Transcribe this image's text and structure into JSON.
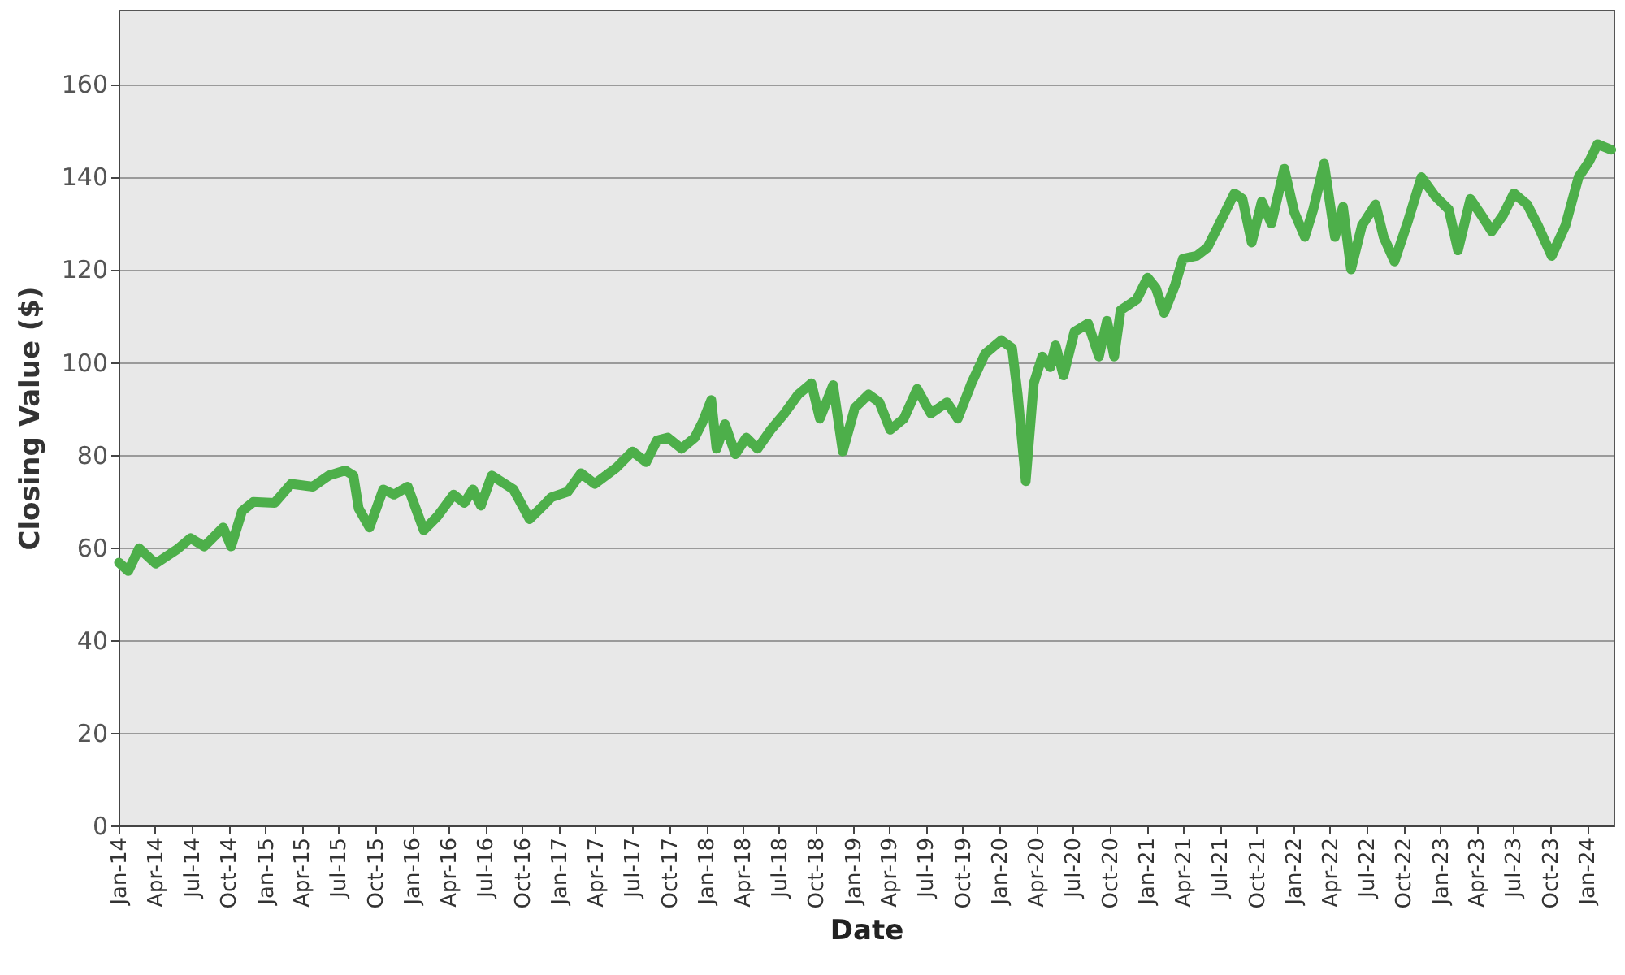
{
  "chart_data": {
    "type": "line",
    "xlabel": "Date",
    "ylabel": "Closing Value ($)",
    "x": [
      "2014-01-02",
      "2014-01-25",
      "2014-02-21",
      "2014-04-03",
      "2014-05-27",
      "2014-06-29",
      "2014-08-02",
      "2014-09-18",
      "2014-10-08",
      "2014-11-04",
      "2014-12-02",
      "2015-01-24",
      "2015-03-06",
      "2015-04-29",
      "2015-06-08",
      "2015-07-19",
      "2015-08-08",
      "2015-08-21",
      "2015-09-17",
      "2015-10-21",
      "2015-11-17",
      "2015-12-21",
      "2016-01-30",
      "2016-03-04",
      "2016-04-13",
      "2016-05-10",
      "2016-05-31",
      "2016-06-20",
      "2016-07-17",
      "2016-09-09",
      "2016-10-19",
      "2016-11-29",
      "2016-12-12",
      "2017-01-22",
      "2017-02-24",
      "2017-03-30",
      "2017-05-23",
      "2017-07-02",
      "2017-08-05",
      "2017-09-01",
      "2017-09-28",
      "2017-11-01",
      "2017-12-04",
      "2017-12-24",
      "2018-01-14",
      "2018-01-27",
      "2018-02-17",
      "2018-03-15",
      "2018-04-11",
      "2018-05-09",
      "2018-06-11",
      "2018-07-15",
      "2018-08-18",
      "2018-09-20",
      "2018-10-11",
      "2018-11-13",
      "2018-12-07",
      "2019-01-06",
      "2019-02-09",
      "2019-03-08",
      "2019-04-04",
      "2019-05-08",
      "2019-06-10",
      "2019-07-14",
      "2019-08-23",
      "2019-09-19",
      "2019-10-23",
      "2019-11-26",
      "2020-01-05",
      "2020-02-01",
      "2020-02-15",
      "2020-03-06",
      "2020-03-26",
      "2020-04-16",
      "2020-05-06",
      "2020-05-19",
      "2020-06-08",
      "2020-07-05",
      "2020-08-08",
      "2020-09-04",
      "2020-09-24",
      "2020-10-12",
      "2020-10-28",
      "2020-12-07",
      "2021-01-03",
      "2021-01-24",
      "2021-02-13",
      "2021-03-12",
      "2021-04-01",
      "2021-05-05",
      "2021-06-01",
      "2021-06-28",
      "2021-08-07",
      "2021-08-27",
      "2021-09-19",
      "2021-10-14",
      "2021-11-07",
      "2021-12-09",
      "2022-01-03",
      "2022-01-29",
      "2022-02-19",
      "2022-03-18",
      "2022-04-14",
      "2022-05-04",
      "2022-05-24",
      "2022-06-20",
      "2022-07-24",
      "2022-08-13",
      "2022-09-09",
      "2022-10-13",
      "2022-11-15",
      "2022-12-19",
      "2023-01-22",
      "2023-02-14",
      "2023-03-17",
      "2023-04-13",
      "2023-05-09",
      "2023-06-06",
      "2023-07-03",
      "2023-08-05",
      "2023-09-01",
      "2023-10-05",
      "2023-11-08",
      "2023-12-11",
      "2024-01-07",
      "2024-01-27",
      "2024-03-01"
    ],
    "series": [
      {
        "color": "#4daf4a",
        "values": [
          56.7,
          54.9,
          59.8,
          56.5,
          59.6,
          62.0,
          60.2,
          64.3,
          60.2,
          67.8,
          69.8,
          69.6,
          73.7,
          73.1,
          75.5,
          76.6,
          75.5,
          68.4,
          64.3,
          72.5,
          71.4,
          73.1,
          63.7,
          66.7,
          71.4,
          69.6,
          72.5,
          69.0,
          75.5,
          72.5,
          66.1,
          69.6,
          70.8,
          72.0,
          76.0,
          73.7,
          77.2,
          80.7,
          78.4,
          83.1,
          83.7,
          81.3,
          83.7,
          87.2,
          91.8,
          81.3,
          86.6,
          80.1,
          83.7,
          81.3,
          85.4,
          88.9,
          93.0,
          95.4,
          87.8,
          95.0,
          80.7,
          90.1,
          93.0,
          91.3,
          85.4,
          87.8,
          94.2,
          88.9,
          91.3,
          87.8,
          95.4,
          101.8,
          104.7,
          103.0,
          93.0,
          74.3,
          95.4,
          101.2,
          98.9,
          103.6,
          97.1,
          106.5,
          108.3,
          101.2,
          108.9,
          101.2,
          111.2,
          113.5,
          118.2,
          115.9,
          110.6,
          116.5,
          122.3,
          122.9,
          124.7,
          129.4,
          136.4,
          135.2,
          125.8,
          134.6,
          129.9,
          141.7,
          132.3,
          127.0,
          132.9,
          142.8,
          127.0,
          133.5,
          120.0,
          129.4,
          134.0,
          127.0,
          121.7,
          130.5,
          139.9,
          135.8,
          132.9,
          124.1,
          135.2,
          131.7,
          128.2,
          131.7,
          136.4,
          134.0,
          129.4,
          122.9,
          129.4,
          139.9,
          143.4,
          147.0,
          145.8
        ]
      }
    ],
    "xlim": [
      "2014-01-01",
      "2024-03-07"
    ],
    "xticks": [
      {
        "value": "2014-01-01",
        "label": "Jan-14"
      },
      {
        "value": "2014-04-01",
        "label": "Apr-14"
      },
      {
        "value": "2014-07-01",
        "label": "Jul-14"
      },
      {
        "value": "2014-10-01",
        "label": "Oct-14"
      },
      {
        "value": "2015-01-01",
        "label": "Jan-15"
      },
      {
        "value": "2015-04-01",
        "label": "Apr-15"
      },
      {
        "value": "2015-07-01",
        "label": "Jul-15"
      },
      {
        "value": "2015-10-01",
        "label": "Oct-15"
      },
      {
        "value": "2016-01-01",
        "label": "Jan-16"
      },
      {
        "value": "2016-04-01",
        "label": "Apr-16"
      },
      {
        "value": "2016-07-01",
        "label": "Jul-16"
      },
      {
        "value": "2016-10-01",
        "label": "Oct-16"
      },
      {
        "value": "2017-01-01",
        "label": "Jan-17"
      },
      {
        "value": "2017-04-01",
        "label": "Apr-17"
      },
      {
        "value": "2017-07-01",
        "label": "Jul-17"
      },
      {
        "value": "2017-10-01",
        "label": "Oct-17"
      },
      {
        "value": "2018-01-01",
        "label": "Jan-18"
      },
      {
        "value": "2018-04-01",
        "label": "Apr-18"
      },
      {
        "value": "2018-07-01",
        "label": "Jul-18"
      },
      {
        "value": "2018-10-01",
        "label": "Oct-18"
      },
      {
        "value": "2019-01-01",
        "label": "Jan-19"
      },
      {
        "value": "2019-04-01",
        "label": "Apr-19"
      },
      {
        "value": "2019-07-01",
        "label": "Jul-19"
      },
      {
        "value": "2019-10-01",
        "label": "Oct-19"
      },
      {
        "value": "2020-01-01",
        "label": "Jan-20"
      },
      {
        "value": "2020-04-01",
        "label": "Apr-20"
      },
      {
        "value": "2020-07-01",
        "label": "Jul-20"
      },
      {
        "value": "2020-10-01",
        "label": "Oct-20"
      },
      {
        "value": "2021-01-01",
        "label": "Jan-21"
      },
      {
        "value": "2021-04-01",
        "label": "Apr-21"
      },
      {
        "value": "2021-07-01",
        "label": "Jul-21"
      },
      {
        "value": "2021-10-01",
        "label": "Oct-21"
      },
      {
        "value": "2022-01-01",
        "label": "Jan-22"
      },
      {
        "value": "2022-04-01",
        "label": "Apr-22"
      },
      {
        "value": "2022-07-01",
        "label": "Jul-22"
      },
      {
        "value": "2022-10-01",
        "label": "Oct-22"
      },
      {
        "value": "2023-01-01",
        "label": "Jan-23"
      },
      {
        "value": "2023-04-01",
        "label": "Apr-23"
      },
      {
        "value": "2023-07-01",
        "label": "Jul-23"
      },
      {
        "value": "2023-10-01",
        "label": "Oct-23"
      },
      {
        "value": "2024-01-01",
        "label": "Jan-24"
      }
    ],
    "ylim": [
      0,
      176
    ],
    "yticks": [
      0,
      20,
      40,
      60,
      80,
      100,
      120,
      140,
      160
    ],
    "grid": "y",
    "line_style": "solid"
  }
}
